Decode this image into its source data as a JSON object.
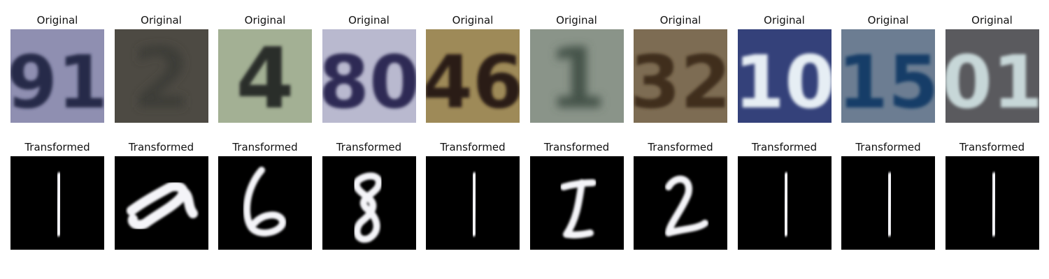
{
  "row_titles": {
    "original": "Original",
    "transformed": "Transformed"
  },
  "samples": [
    {
      "original_digits": "91",
      "original_bg": "#8f8fb1",
      "original_fg": "#272a4a",
      "transformed_digit": "1"
    },
    {
      "original_digits": "2",
      "original_bg": "#4d4a43",
      "original_fg": "#3c3c38",
      "transformed_digit": "scribble"
    },
    {
      "original_digits": "4",
      "original_bg": "#a3b094",
      "original_fg": "#2b2f2b",
      "transformed_digit": "6"
    },
    {
      "original_digits": "80",
      "original_bg": "#b9b9cf",
      "original_fg": "#2d2b55",
      "transformed_digit": "8"
    },
    {
      "original_digits": "46",
      "original_bg": "#9e8a58",
      "original_fg": "#2a1d12",
      "transformed_digit": "1"
    },
    {
      "original_digits": "1",
      "original_bg": "#8a9489",
      "original_fg": "#45524a",
      "transformed_digit": "7"
    },
    {
      "original_digits": "32",
      "original_bg": "#7d6c53",
      "original_fg": "#3f2d1f",
      "transformed_digit": "2"
    },
    {
      "original_digits": "10",
      "original_bg": "#34417a",
      "original_fg": "#e6eef4",
      "transformed_digit": "1"
    },
    {
      "original_digits": "15",
      "original_bg": "#6c7d92",
      "original_fg": "#163d67",
      "transformed_digit": "1"
    },
    {
      "original_digits": "01",
      "original_bg": "#5a5a5e",
      "original_fg": "#c7d7d8",
      "transformed_digit": "1"
    }
  ]
}
